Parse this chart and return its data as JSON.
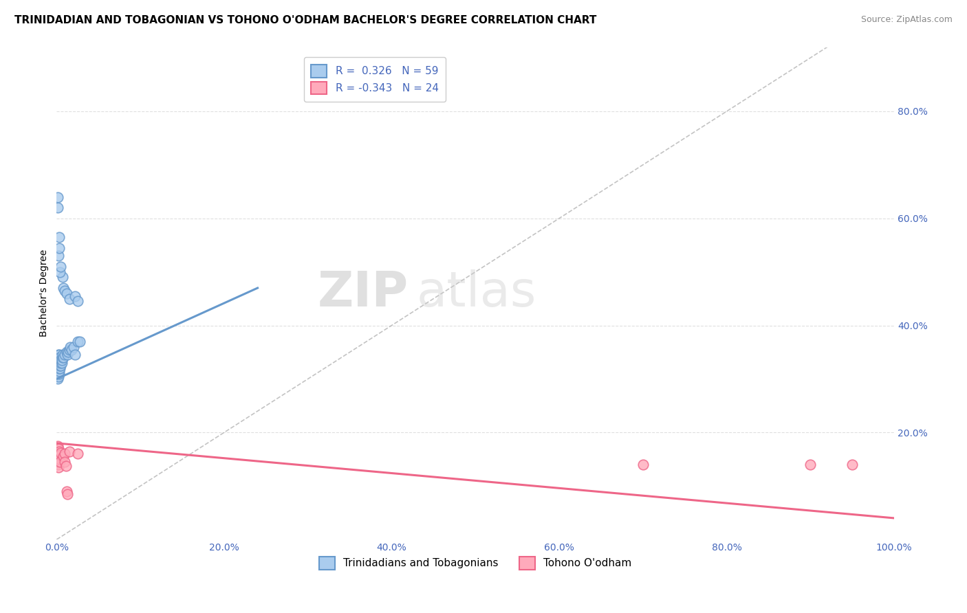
{
  "title": "TRINIDADIAN AND TOBAGONIAN VS TOHONO O'ODHAM BACHELOR'S DEGREE CORRELATION CHART",
  "source": "Source: ZipAtlas.com",
  "ylabel": "Bachelor's Degree",
  "watermark_zip": "ZIP",
  "watermark_atlas": "atlas",
  "blue_scatter": [
    [
      0.001,
      0.3
    ],
    [
      0.001,
      0.31
    ],
    [
      0.001,
      0.32
    ],
    [
      0.001,
      0.325
    ],
    [
      0.001,
      0.33
    ],
    [
      0.001,
      0.335
    ],
    [
      0.002,
      0.305
    ],
    [
      0.002,
      0.315
    ],
    [
      0.002,
      0.32
    ],
    [
      0.002,
      0.325
    ],
    [
      0.002,
      0.33
    ],
    [
      0.002,
      0.34
    ],
    [
      0.002,
      0.345
    ],
    [
      0.003,
      0.31
    ],
    [
      0.003,
      0.315
    ],
    [
      0.003,
      0.32
    ],
    [
      0.003,
      0.325
    ],
    [
      0.003,
      0.33
    ],
    [
      0.003,
      0.335
    ],
    [
      0.003,
      0.34
    ],
    [
      0.003,
      0.345
    ],
    [
      0.004,
      0.32
    ],
    [
      0.004,
      0.325
    ],
    [
      0.004,
      0.33
    ],
    [
      0.004,
      0.335
    ],
    [
      0.004,
      0.34
    ],
    [
      0.005,
      0.325
    ],
    [
      0.005,
      0.33
    ],
    [
      0.005,
      0.335
    ],
    [
      0.006,
      0.33
    ],
    [
      0.006,
      0.335
    ],
    [
      0.007,
      0.34
    ],
    [
      0.007,
      0.345
    ],
    [
      0.008,
      0.34
    ],
    [
      0.01,
      0.345
    ],
    [
      0.012,
      0.35
    ],
    [
      0.013,
      0.345
    ],
    [
      0.014,
      0.35
    ],
    [
      0.015,
      0.355
    ],
    [
      0.016,
      0.36
    ],
    [
      0.018,
      0.355
    ],
    [
      0.02,
      0.36
    ],
    [
      0.022,
      0.345
    ],
    [
      0.025,
      0.37
    ],
    [
      0.028,
      0.37
    ],
    [
      0.001,
      0.62
    ],
    [
      0.002,
      0.53
    ],
    [
      0.003,
      0.565
    ],
    [
      0.001,
      0.64
    ],
    [
      0.007,
      0.49
    ],
    [
      0.008,
      0.47
    ],
    [
      0.01,
      0.465
    ],
    [
      0.012,
      0.46
    ],
    [
      0.003,
      0.545
    ],
    [
      0.004,
      0.5
    ],
    [
      0.005,
      0.51
    ],
    [
      0.015,
      0.45
    ],
    [
      0.022,
      0.455
    ],
    [
      0.025,
      0.445
    ]
  ],
  "pink_scatter": [
    [
      0.001,
      0.175
    ],
    [
      0.001,
      0.16
    ],
    [
      0.001,
      0.15
    ],
    [
      0.001,
      0.14
    ],
    [
      0.002,
      0.17
    ],
    [
      0.002,
      0.155
    ],
    [
      0.002,
      0.145
    ],
    [
      0.002,
      0.135
    ],
    [
      0.003,
      0.165
    ],
    [
      0.003,
      0.15
    ],
    [
      0.004,
      0.158
    ],
    [
      0.004,
      0.145
    ],
    [
      0.005,
      0.162
    ],
    [
      0.008,
      0.155
    ],
    [
      0.01,
      0.16
    ],
    [
      0.01,
      0.145
    ],
    [
      0.011,
      0.138
    ],
    [
      0.012,
      0.09
    ],
    [
      0.013,
      0.085
    ],
    [
      0.015,
      0.165
    ],
    [
      0.025,
      0.16
    ],
    [
      0.7,
      0.14
    ],
    [
      0.9,
      0.14
    ],
    [
      0.95,
      0.14
    ]
  ],
  "blue_line": [
    [
      0.0,
      0.3
    ],
    [
      0.24,
      0.47
    ]
  ],
  "pink_line": [
    [
      0.0,
      0.18
    ],
    [
      1.0,
      0.04
    ]
  ],
  "dashed_line": [
    [
      0.0,
      0.0
    ],
    [
      1.0,
      1.0
    ]
  ],
  "blue_color": "#6699cc",
  "blue_fill": "#aaccee",
  "pink_color": "#ee6688",
  "pink_fill": "#ffaabb",
  "dashed_color": "#aaaaaa",
  "legend_blue_r": "0.326",
  "legend_blue_n": "59",
  "legend_pink_r": "-0.343",
  "legend_pink_n": "24",
  "xlim": [
    0.0,
    1.0
  ],
  "ylim": [
    0.0,
    0.92
  ],
  "xticks": [
    0.0,
    0.2,
    0.4,
    0.6,
    0.8,
    1.0
  ],
  "xticklabels": [
    "0.0%",
    "20.0%",
    "40.0%",
    "60.0%",
    "80.0%",
    "100.0%"
  ],
  "right_yticks": [
    0.2,
    0.4,
    0.6,
    0.8
  ],
  "right_yticklabels": [
    "20.0%",
    "40.0%",
    "60.0%",
    "80.0%"
  ],
  "title_fontsize": 11,
  "axis_label_fontsize": 10,
  "tick_fontsize": 10,
  "legend_fontsize": 11,
  "source_fontsize": 9,
  "background_color": "#ffffff",
  "grid_color": "#e0e0e0",
  "legend_label_blue": "Trinidadians and Tobagonians",
  "legend_label_pink": "Tohono O'odham",
  "accent_color": "#4466bb"
}
